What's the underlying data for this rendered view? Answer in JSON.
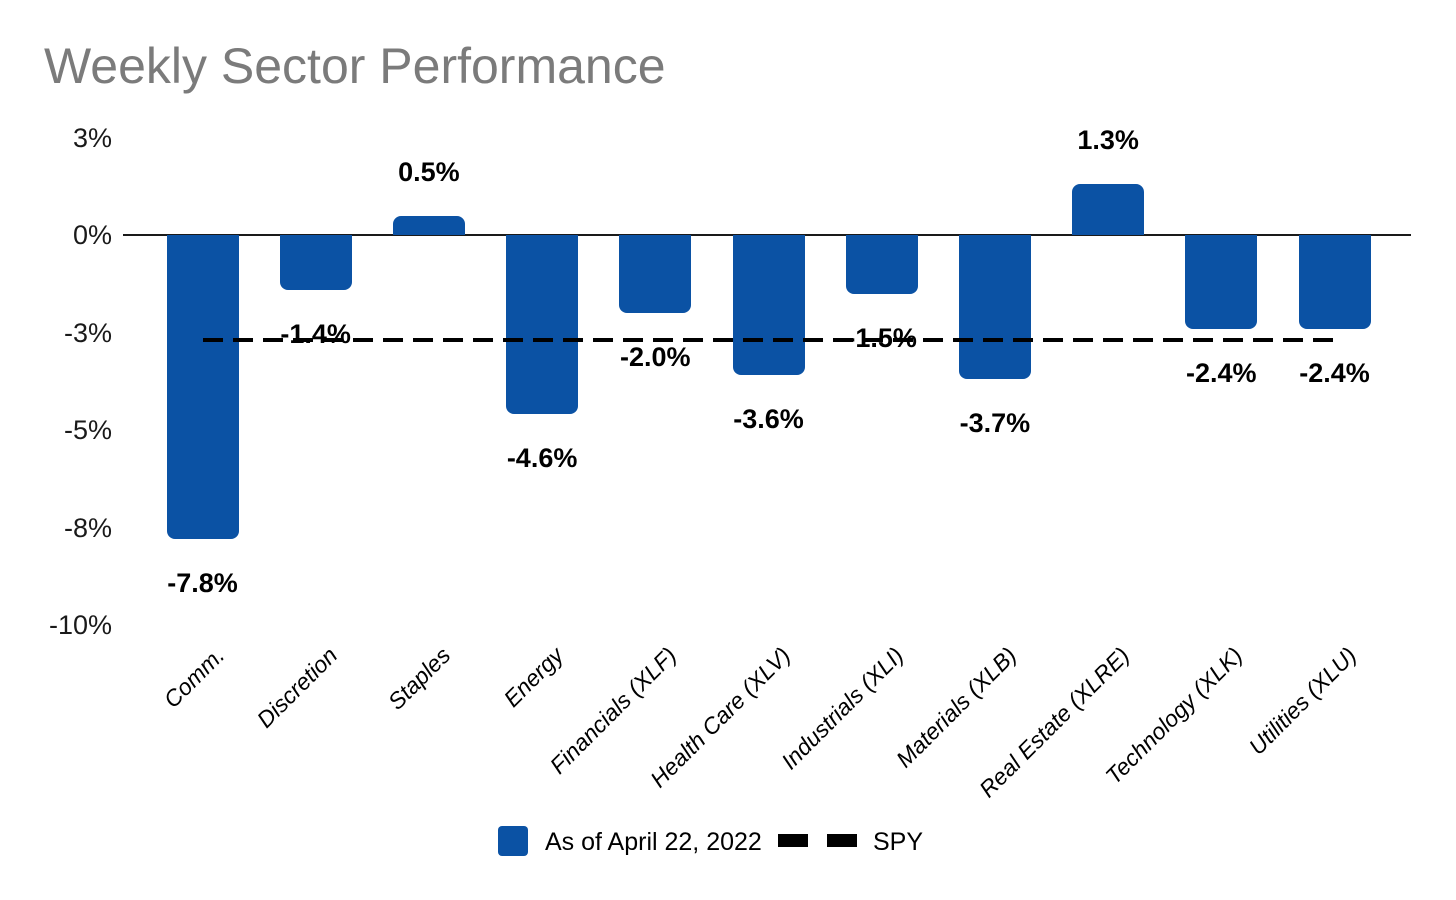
{
  "title": "Weekly Sector Performance",
  "title_color": "#7b7b7b",
  "chart_data": {
    "type": "bar",
    "title": "Weekly Sector Performance",
    "unit": "%",
    "categories": [
      "Comm.",
      "Discretion",
      "Staples",
      "Energy",
      "Financials (XLF)",
      "Health Care (XLV)",
      "Industrials (XLI)",
      "Materials (XLB)",
      "Real Estate (XLRE)",
      "Technology (XLK)",
      "Utilities (XLU)"
    ],
    "values": [
      -7.8,
      -1.4,
      0.5,
      -4.6,
      -2.0,
      -3.6,
      -1.5,
      -3.7,
      1.3,
      -2.4,
      -2.4
    ],
    "data_labels": [
      "-7.8%",
      "-1.4%",
      "0.5%",
      "-4.6%",
      "-2.0%",
      "-3.6%",
      "-1.5%",
      "-3.7%",
      "1.3%",
      "-2.4%",
      "-2.4%"
    ],
    "xlabel": "",
    "ylabel": "",
    "ylim": [
      -10,
      2.5
    ],
    "grid": false,
    "y_ticks": [
      {
        "label": "3%",
        "value": 2.5
      },
      {
        "label": "0%",
        "value": 0
      },
      {
        "label": "-3%",
        "value": -2.5
      },
      {
        "label": "-5%",
        "value": -5
      },
      {
        "label": "-8%",
        "value": -7.5
      },
      {
        "label": "-10%",
        "value": -10
      }
    ],
    "reference_line": {
      "name": "SPY",
      "value": -2.7,
      "style": "dashed",
      "color": "#000000"
    },
    "bar_color": "#0b52a4",
    "legend": {
      "position": "bottom",
      "entries": [
        {
          "label": "As of April 22, 2022",
          "swatch": "bar",
          "color": "#0b52a4"
        },
        {
          "label": "SPY",
          "swatch": "dashed-line",
          "color": "#000000"
        }
      ]
    }
  }
}
